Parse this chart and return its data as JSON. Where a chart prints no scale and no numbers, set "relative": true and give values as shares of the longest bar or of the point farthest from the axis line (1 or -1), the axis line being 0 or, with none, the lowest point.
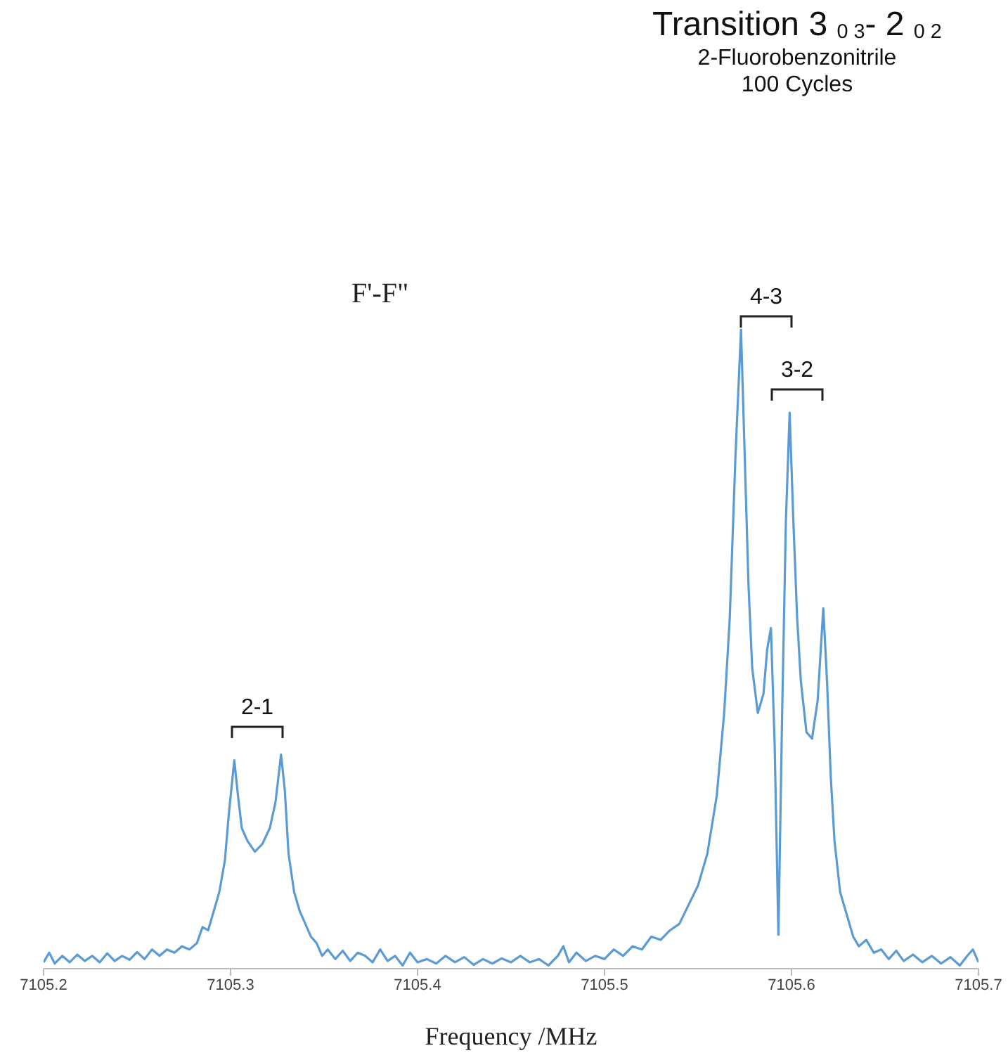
{
  "chart_data": {
    "type": "line",
    "title": "Transition 3 $_{0 3}$- 2 $_{0 2}$",
    "subtitle": "2-Fluorobenzonitrile\n100 Cycles",
    "xlabel": "Frequency /MHz",
    "relative": true,
    "marker": "none",
    "xlim": [
      7105.2,
      7105.7
    ],
    "xticks": [
      7105.2,
      7105.3,
      7105.4,
      7105.5,
      7105.6,
      7105.7
    ],
    "annotations": [
      "F'-F\"",
      "2-1",
      "4-3",
      "3-2"
    ],
    "series": [
      {
        "color": "#5b9bd5",
        "x": [
          7105.2,
          7105.203,
          7105.206,
          7105.21,
          7105.214,
          7105.218,
          7105.222,
          7105.226,
          7105.23,
          7105.234,
          7105.238,
          7105.242,
          7105.246,
          7105.25,
          7105.254,
          7105.258,
          7105.262,
          7105.266,
          7105.27,
          7105.274,
          7105.278,
          7105.282,
          7105.285,
          7105.288,
          7105.291,
          7105.294,
          7105.297,
          7105.299,
          7105.302,
          7105.304,
          7105.306,
          7105.309,
          7105.313,
          7105.317,
          7105.321,
          7105.324,
          7105.327,
          7105.329,
          7105.331,
          7105.334,
          7105.337,
          7105.34,
          7105.343,
          7105.346,
          7105.349,
          7105.352,
          7105.356,
          7105.36,
          7105.364,
          7105.368,
          7105.372,
          7105.376,
          7105.38,
          7105.384,
          7105.388,
          7105.392,
          7105.396,
          7105.4,
          7105.405,
          7105.41,
          7105.415,
          7105.42,
          7105.425,
          7105.43,
          7105.435,
          7105.44,
          7105.445,
          7105.45,
          7105.455,
          7105.46,
          7105.465,
          7105.47,
          7105.475,
          7105.478,
          7105.481,
          7105.485,
          7105.49,
          7105.495,
          7105.5,
          7105.505,
          7105.51,
          7105.515,
          7105.52,
          7105.525,
          7105.53,
          7105.535,
          7105.54,
          7105.545,
          7105.55,
          7105.555,
          7105.56,
          7105.564,
          7105.567,
          7105.57,
          7105.573,
          7105.575,
          7105.577,
          7105.579,
          7105.582,
          7105.585,
          7105.587,
          7105.589,
          7105.591,
          7105.593,
          7105.595,
          7105.597,
          7105.599,
          7105.601,
          7105.603,
          7105.605,
          7105.608,
          7105.611,
          7105.614,
          7105.617,
          7105.619,
          7105.621,
          7105.623,
          7105.626,
          7105.63,
          7105.633,
          7105.636,
          7105.64,
          7105.644,
          7105.648,
          7105.652,
          7105.656,
          7105.66,
          7105.665,
          7105.67,
          7105.675,
          7105.68,
          7105.685,
          7105.69,
          7105.694,
          7105.697,
          7105.7
        ],
        "values": [
          0.01,
          0.025,
          0.008,
          0.02,
          0.01,
          0.022,
          0.012,
          0.02,
          0.01,
          0.024,
          0.012,
          0.02,
          0.014,
          0.026,
          0.015,
          0.03,
          0.02,
          0.03,
          0.025,
          0.035,
          0.03,
          0.04,
          0.065,
          0.06,
          0.09,
          0.12,
          0.17,
          0.24,
          0.326,
          0.27,
          0.22,
          0.2,
          0.183,
          0.195,
          0.22,
          0.26,
          0.335,
          0.28,
          0.18,
          0.12,
          0.09,
          0.07,
          0.05,
          0.04,
          0.02,
          0.03,
          0.015,
          0.028,
          0.012,
          0.025,
          0.02,
          0.01,
          0.03,
          0.012,
          0.02,
          0.005,
          0.025,
          0.01,
          0.015,
          0.008,
          0.02,
          0.01,
          0.018,
          0.006,
          0.015,
          0.008,
          0.016,
          0.01,
          0.02,
          0.01,
          0.015,
          0.005,
          0.02,
          0.035,
          0.01,
          0.025,
          0.012,
          0.02,
          0.015,
          0.03,
          0.02,
          0.035,
          0.03,
          0.05,
          0.045,
          0.06,
          0.07,
          0.1,
          0.13,
          0.18,
          0.27,
          0.4,
          0.55,
          0.8,
          1,
          0.8,
          0.6,
          0.47,
          0.4,
          0.43,
          0.5,
          0.533,
          0.35,
          0.053,
          0.4,
          0.7,
          0.87,
          0.7,
          0.55,
          0.45,
          0.37,
          0.36,
          0.42,
          0.564,
          0.45,
          0.3,
          0.2,
          0.12,
          0.08,
          0.05,
          0.035,
          0.045,
          0.025,
          0.03,
          0.015,
          0.028,
          0.012,
          0.022,
          0.01,
          0.02,
          0.008,
          0.018,
          0.005,
          0.02,
          0.03,
          0.01
        ]
      }
    ]
  }
}
